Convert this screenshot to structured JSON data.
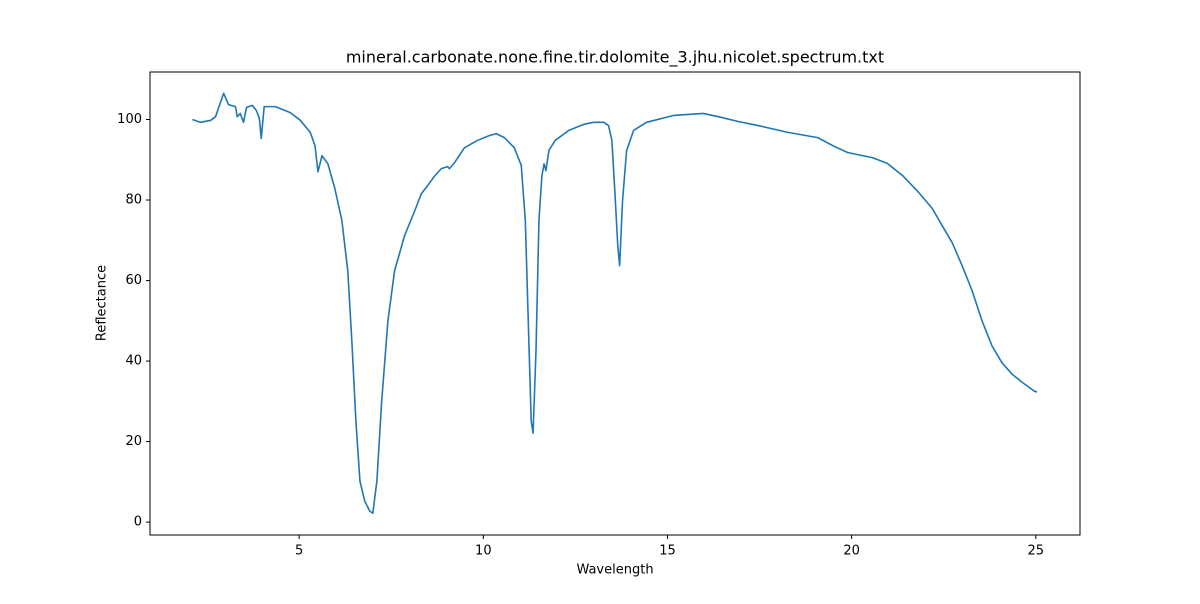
{
  "chart_data": {
    "type": "line",
    "title": "mineral.carbonate.none.fine.tir.dolomite_3.jhu.nicolet.spectrum.txt",
    "x_label": "Wavelength",
    "y_label": "Reflectance",
    "x": [
      2.1,
      2.32,
      2.6,
      2.73,
      2.86,
      2.95,
      3.08,
      3.27,
      3.32,
      3.4,
      3.49,
      3.57,
      3.73,
      3.84,
      3.92,
      3.97,
      4.05,
      4.35,
      4.76,
      5.03,
      5.3,
      5.43,
      5.51,
      5.62,
      5.78,
      5.97,
      6.16,
      6.32,
      6.43,
      6.54,
      6.65,
      6.78,
      6.92,
      7.0,
      7.11,
      7.24,
      7.41,
      7.59,
      7.86,
      8.14,
      8.32,
      8.49,
      8.68,
      8.86,
      9.03,
      9.08,
      9.22,
      9.49,
      9.84,
      10.16,
      10.35,
      10.57,
      10.84,
      11.03,
      11.14,
      11.22,
      11.3,
      11.35,
      11.43,
      11.51,
      11.59,
      11.65,
      11.7,
      11.78,
      11.95,
      12.32,
      12.73,
      13.0,
      13.27,
      13.4,
      13.49,
      13.57,
      13.65,
      13.7,
      13.78,
      13.89,
      14.08,
      14.43,
      15.16,
      15.97,
      16.38,
      16.92,
      17.46,
      18.27,
      19.08,
      19.49,
      19.89,
      20.57,
      20.97,
      21.38,
      21.78,
      22.19,
      22.46,
      22.73,
      23.0,
      23.27,
      23.54,
      23.81,
      24.08,
      24.35,
      24.62,
      24.95,
      25.03
    ],
    "series": [
      {
        "name": "spectrum",
        "color": "#1f77b4",
        "values": [
          100,
          99.3,
          99.8,
          100.7,
          104.2,
          106.5,
          103.7,
          103.2,
          100.7,
          101.5,
          99.3,
          103,
          103.5,
          102.2,
          100.2,
          95.3,
          103.2,
          103.2,
          101.7,
          99.8,
          96.8,
          93.5,
          87,
          91,
          89,
          82.8,
          74.9,
          62.4,
          45,
          25.1,
          10.2,
          5.2,
          2.7,
          2.2,
          10.2,
          30,
          50,
          62.4,
          71.1,
          77.4,
          81.6,
          83.6,
          86,
          87.8,
          88.3,
          87.8,
          89.3,
          93,
          94.8,
          96,
          96.5,
          95.5,
          93,
          88.6,
          74.9,
          50,
          25.1,
          22.1,
          42.5,
          74.9,
          86,
          89,
          87.3,
          92.3,
          94.8,
          97.3,
          98.8,
          99.3,
          99.3,
          98.5,
          94.8,
          82.3,
          68.7,
          63.7,
          79.9,
          92.3,
          97.3,
          99.3,
          101,
          101.5,
          100.7,
          99.5,
          98.5,
          96.8,
          95.5,
          93.5,
          91.8,
          90.5,
          89.1,
          86.1,
          82.3,
          77.9,
          73.6,
          69.4,
          63.7,
          57.5,
          50,
          43.8,
          39.6,
          36.8,
          34.8,
          32.6,
          32.3
        ]
      }
    ],
    "xlim": [
      0.95,
      26.2
    ],
    "ylim": [
      -3.2,
      111.8
    ],
    "xticks": [
      5,
      10,
      15,
      20,
      25
    ],
    "yticks": [
      0,
      20,
      40,
      60,
      80,
      100
    ]
  }
}
